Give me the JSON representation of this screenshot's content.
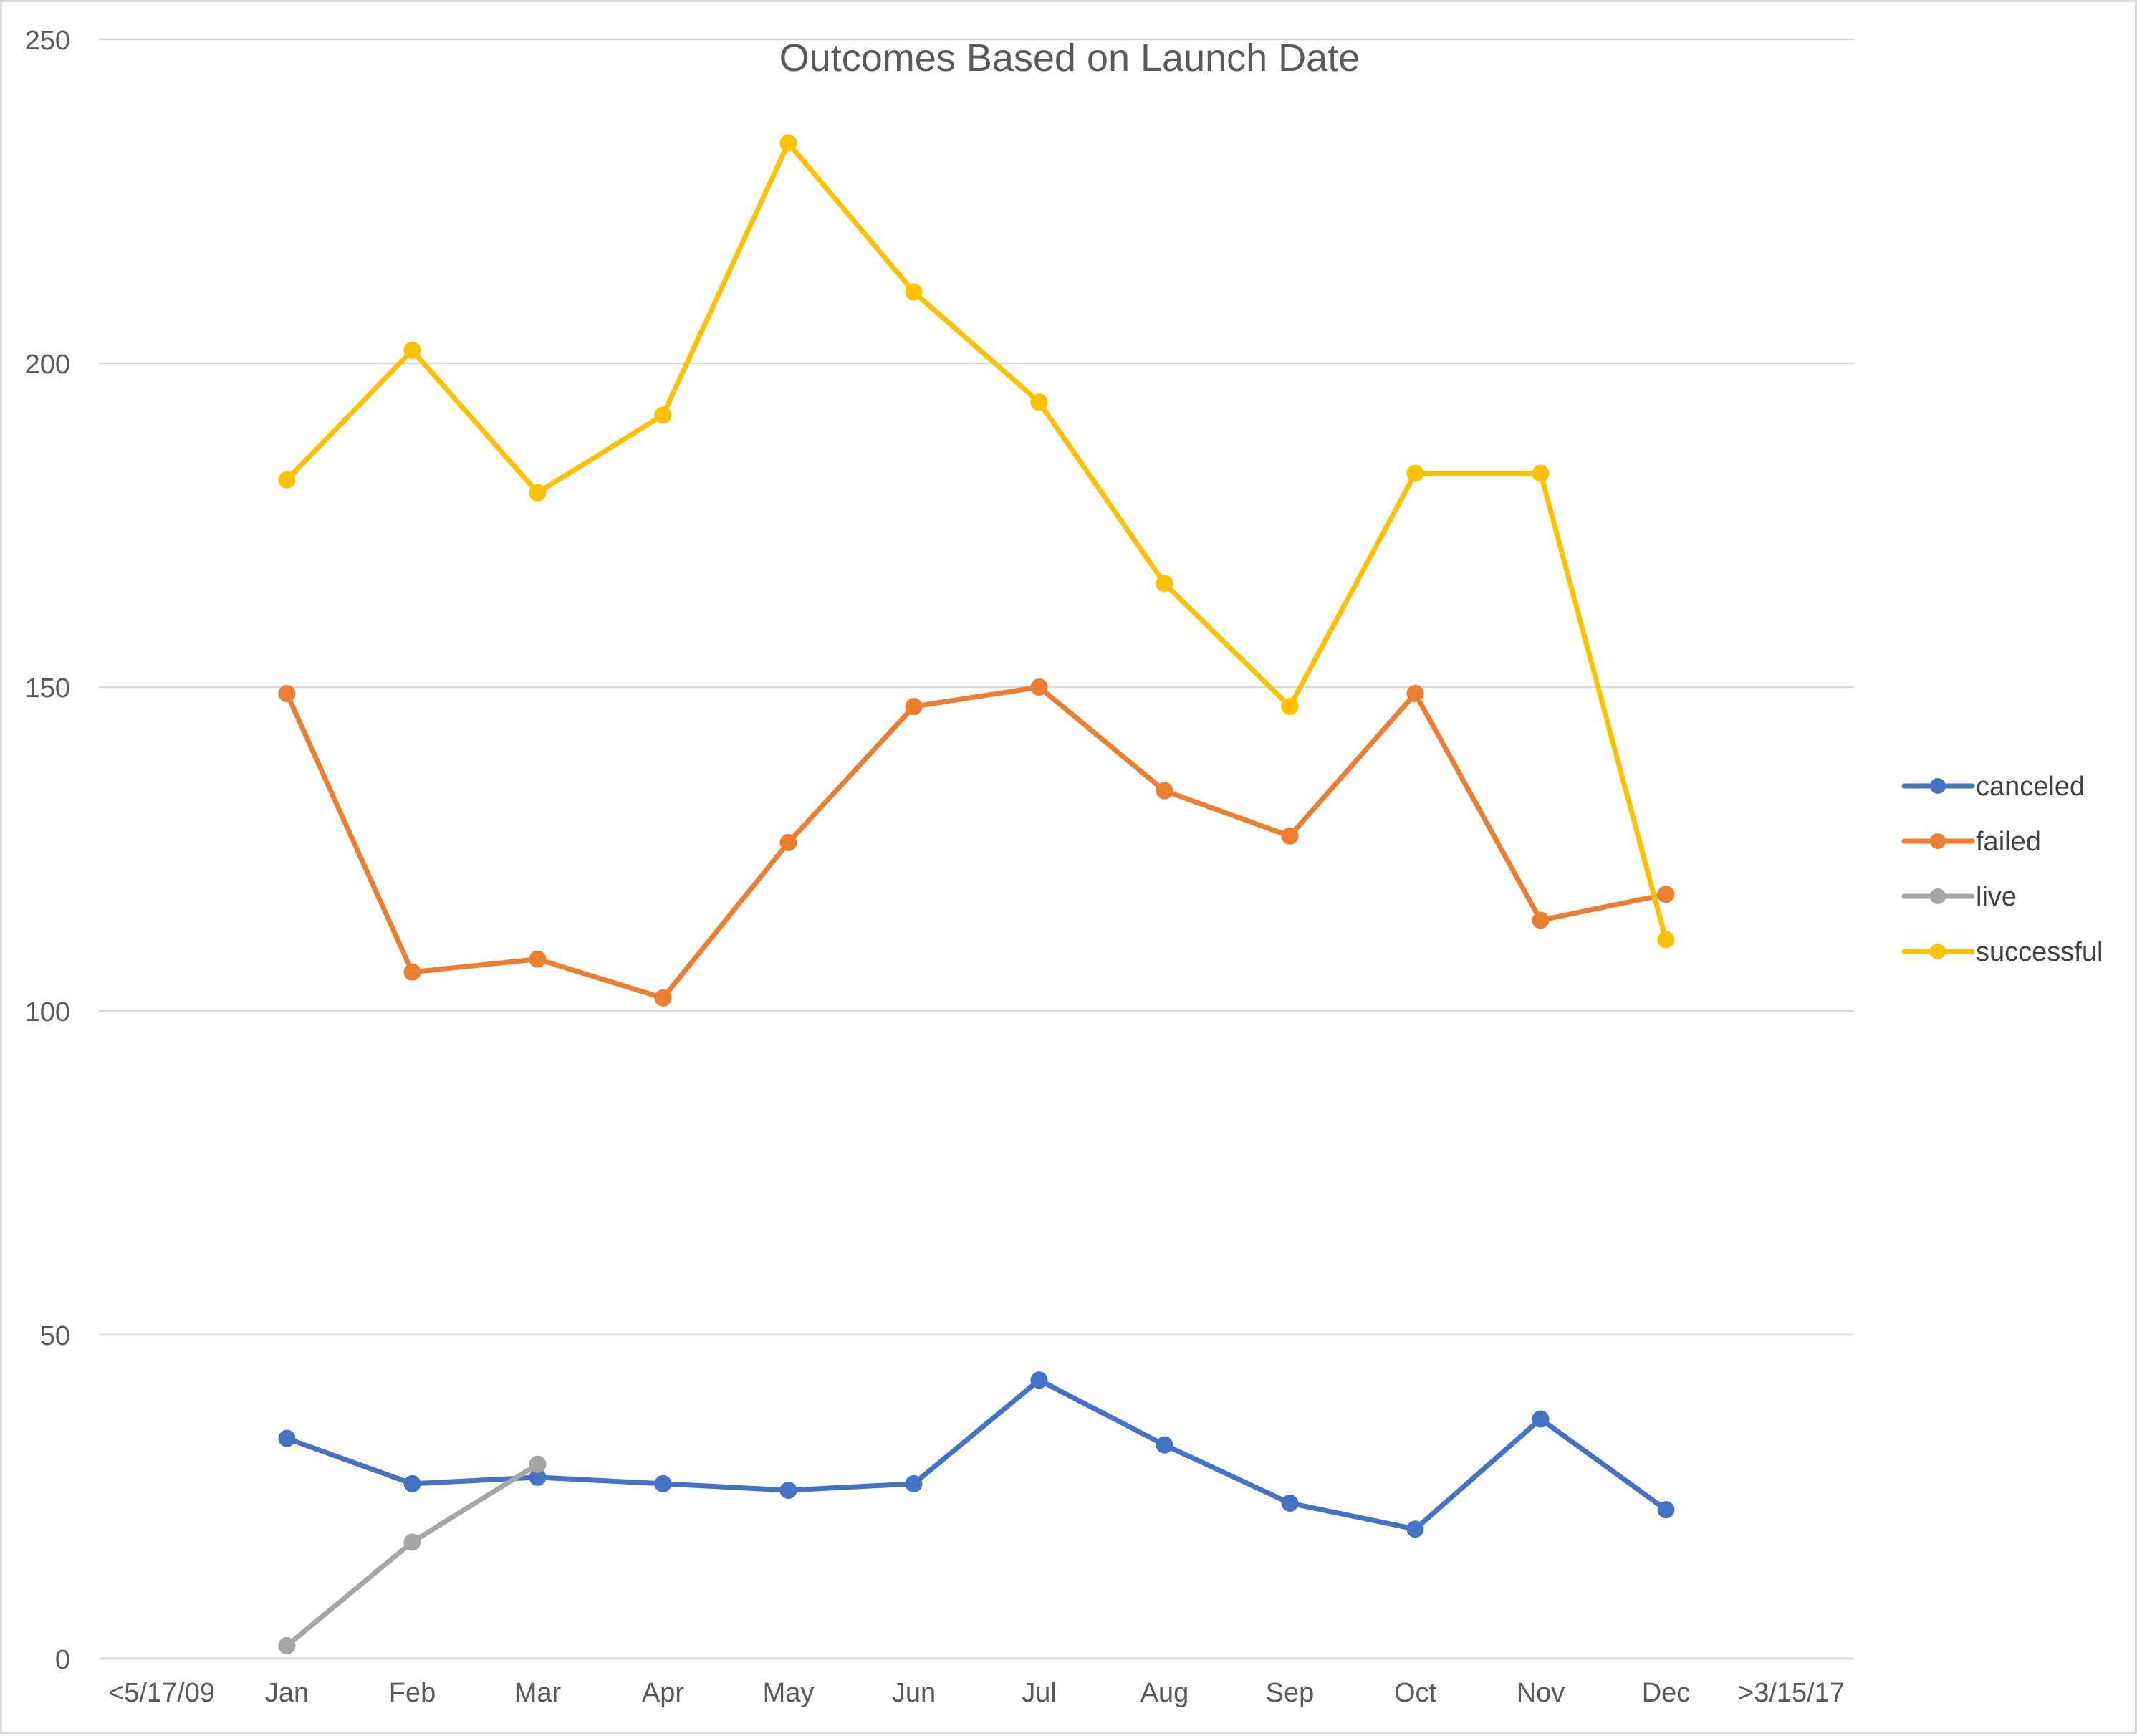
{
  "chart_data": {
    "type": "line",
    "title": "Outcomes Based on Launch Date",
    "xlabel": "",
    "ylabel": "",
    "categories": [
      "<5/17/09",
      "Jan",
      "Feb",
      "Mar",
      "Apr",
      "May",
      "Jun",
      "Jul",
      "Aug",
      "Sep",
      "Oct",
      "Nov",
      "Dec",
      ">3/15/17"
    ],
    "y_ticks": [
      "0",
      "50",
      "100",
      "150",
      "200",
      "250"
    ],
    "ylim": [
      0,
      250
    ],
    "grid": true,
    "legend_position": "right",
    "series": [
      {
        "name": "canceled",
        "color": "#4472c4",
        "values": [
          null,
          34,
          27,
          28,
          27,
          26,
          27,
          43,
          33,
          24,
          20,
          37,
          23,
          null
        ]
      },
      {
        "name": "failed",
        "color": "#ed7d31",
        "values": [
          null,
          149,
          106,
          108,
          102,
          126,
          147,
          150,
          134,
          127,
          149,
          114,
          118,
          null
        ]
      },
      {
        "name": "live",
        "color": "#a5a5a5",
        "values": [
          null,
          2,
          18,
          30,
          null,
          null,
          null,
          null,
          null,
          null,
          null,
          null,
          null,
          null
        ]
      },
      {
        "name": "successful",
        "color": "#ffc000",
        "values": [
          null,
          182,
          202,
          180,
          192,
          234,
          211,
          194,
          166,
          147,
          183,
          183,
          111,
          null
        ]
      }
    ]
  }
}
